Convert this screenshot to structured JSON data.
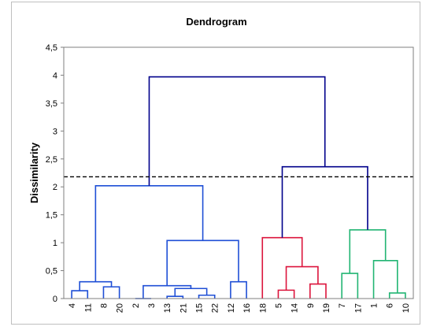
{
  "chart_data": {
    "type": "dendrogram",
    "title": "Dendrogram",
    "xlabel": "",
    "ylabel": "Dissimilarity",
    "ylim": [
      0,
      4.5
    ],
    "yticks": [
      "0",
      "0,5",
      "1",
      "1,5",
      "2",
      "2,5",
      "3",
      "3,5",
      "4",
      "4,5"
    ],
    "leaves": [
      "4",
      "11",
      "8",
      "20",
      "2",
      "3",
      "13",
      "21",
      "15",
      "22",
      "12",
      "16",
      "18",
      "5",
      "14",
      "9",
      "19",
      "7",
      "17",
      "1",
      "6",
      "10"
    ],
    "cut_height": 2.18,
    "cluster_colors": [
      "#1f4fd6",
      "#dc143c",
      "#22b573"
    ],
    "root_color": "#00008b",
    "merges": [
      {
        "a": "L:4",
        "b": "L:11",
        "h": 0.14,
        "c": 0
      },
      {
        "a": "L:8",
        "b": "L:20",
        "h": 0.21,
        "c": 0
      },
      {
        "a": "M:0",
        "b": "M:1",
        "h": 0.3,
        "c": 0
      },
      {
        "a": "L:2",
        "b": "L:3",
        "h": 0.0,
        "c": 0
      },
      {
        "a": "L:13",
        "b": "L:21",
        "h": 0.04,
        "c": 0
      },
      {
        "a": "L:15",
        "b": "L:22",
        "h": 0.06,
        "c": 0
      },
      {
        "a": "M:4",
        "b": "M:5",
        "h": 0.18,
        "c": 0
      },
      {
        "a": "M:3",
        "b": "M:6",
        "h": 0.23,
        "c": 0
      },
      {
        "a": "L:12",
        "b": "L:16",
        "h": 0.3,
        "c": 0
      },
      {
        "a": "M:7",
        "b": "M:8",
        "h": 1.04,
        "c": 0
      },
      {
        "a": "M:2",
        "b": "M:9",
        "h": 2.02,
        "c": 0
      },
      {
        "a": "L:5",
        "b": "L:14",
        "h": 0.15,
        "c": 1
      },
      {
        "a": "L:9",
        "b": "L:19",
        "h": 0.26,
        "c": 1
      },
      {
        "a": "M:11",
        "b": "M:12",
        "h": 0.57,
        "c": 1
      },
      {
        "a": "L:18",
        "b": "M:13",
        "h": 1.09,
        "c": 1
      },
      {
        "a": "L:7",
        "b": "L:17",
        "h": 0.45,
        "c": 2
      },
      {
        "a": "L:6",
        "b": "L:10",
        "h": 0.1,
        "c": 2
      },
      {
        "a": "L:1",
        "b": "M:16",
        "h": 0.68,
        "c": 2
      },
      {
        "a": "M:15",
        "b": "M:17",
        "h": 1.23,
        "c": 2
      },
      {
        "a": "M:14",
        "b": "M:18",
        "h": 2.36,
        "c": -1
      },
      {
        "a": "M:10",
        "b": "M:19",
        "h": 3.97,
        "c": -1
      }
    ]
  }
}
